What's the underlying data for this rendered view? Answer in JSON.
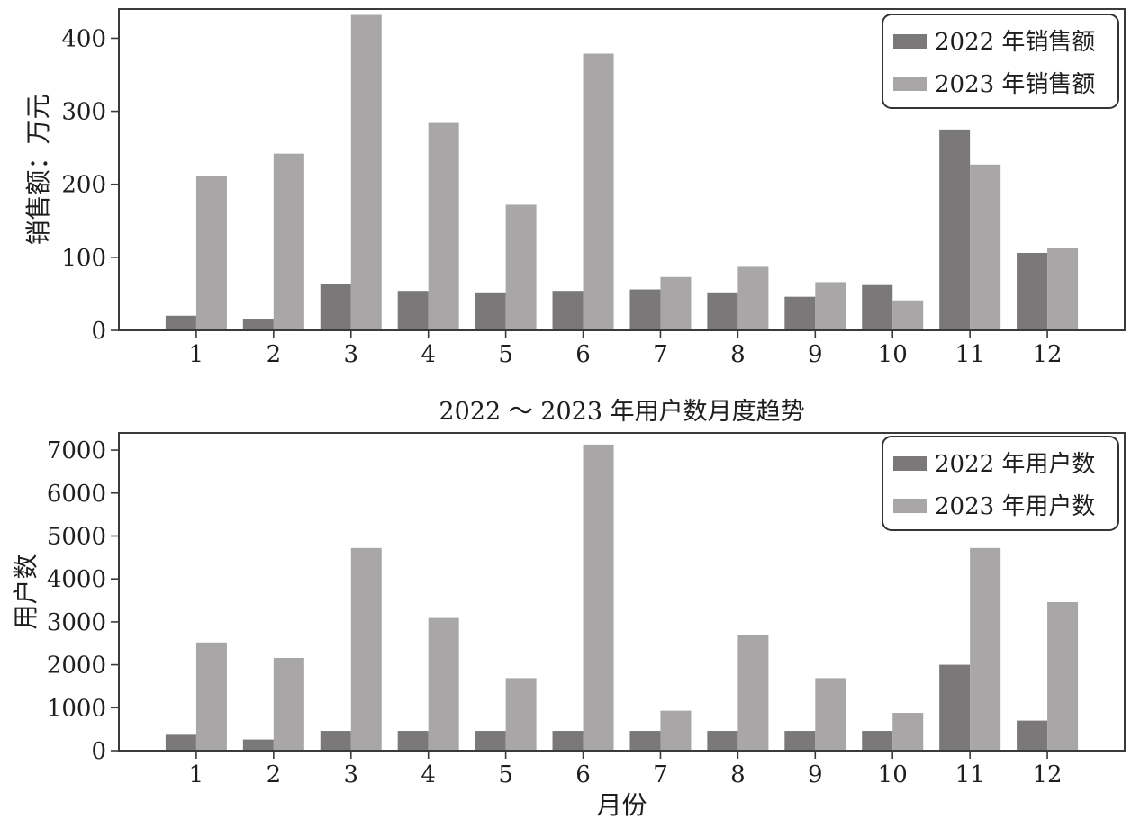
{
  "chart_data": [
    {
      "type": "bar",
      "title": "",
      "xlabel": "",
      "ylabel": "销售额：万元",
      "ylim": [
        0,
        440
      ],
      "yticks": [
        0,
        100,
        200,
        300,
        400
      ],
      "categories": [
        "1",
        "2",
        "3",
        "4",
        "5",
        "6",
        "7",
        "8",
        "9",
        "10",
        "11",
        "12"
      ],
      "series": [
        {
          "name": "2022 年销售额",
          "color": "#7a7878",
          "values": [
            20,
            16,
            64,
            54,
            52,
            54,
            56,
            52,
            46,
            62,
            275,
            106
          ]
        },
        {
          "name": "2023 年销售额",
          "color": "#a8a6a6",
          "values": [
            211,
            242,
            432,
            284,
            172,
            379,
            73,
            87,
            66,
            41,
            227,
            113
          ]
        }
      ],
      "legend": "top-right",
      "grid": false
    },
    {
      "type": "bar",
      "title": "2022 ～ 2023 年用户数月度趋势",
      "xlabel": "月份",
      "ylabel": "用户数",
      "ylim": [
        0,
        7400
      ],
      "yticks": [
        0,
        1000,
        2000,
        3000,
        4000,
        5000,
        6000,
        7000
      ],
      "categories": [
        "1",
        "2",
        "3",
        "4",
        "5",
        "6",
        "7",
        "8",
        "9",
        "10",
        "11",
        "12"
      ],
      "series": [
        {
          "name": "2022 年用户数",
          "color": "#7a7878",
          "values": [
            370,
            260,
            460,
            460,
            460,
            460,
            460,
            460,
            460,
            460,
            2000,
            700
          ]
        },
        {
          "name": "2023 年用户数",
          "color": "#a8a6a6",
          "values": [
            2520,
            2160,
            4720,
            3090,
            1690,
            7130,
            930,
            2700,
            1690,
            880,
            4720,
            3460
          ]
        }
      ],
      "legend": "top-right",
      "grid": false
    }
  ]
}
